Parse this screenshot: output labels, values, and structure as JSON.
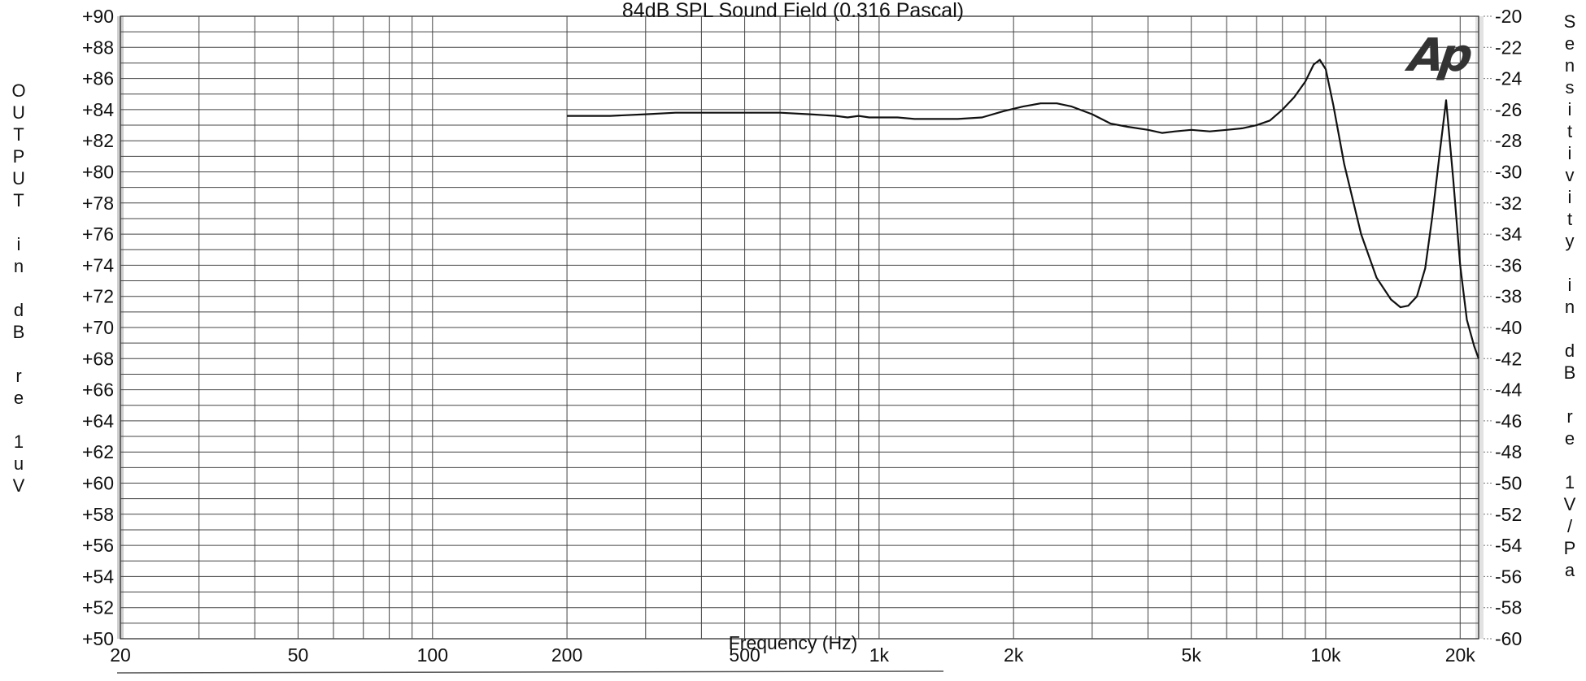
{
  "chart_data": {
    "type": "line",
    "title": "84dB SPL Sound Field (0.316 Pascal)",
    "xlabel": "Frequency (Hz)",
    "ylabel_left": "OUTPUT in dB re 1uV",
    "ylabel_right": "Sensitivity in dB re 1V/Pa",
    "x_scale": "log",
    "xlim": [
      20,
      22000
    ],
    "ylim_left": [
      50,
      90
    ],
    "ylim_right": [
      -60,
      -20
    ],
    "grid": true,
    "x_tick_labels": [
      {
        "value": 20,
        "label": "20"
      },
      {
        "value": 50,
        "label": "50"
      },
      {
        "value": 100,
        "label": "100"
      },
      {
        "value": 200,
        "label": "200"
      },
      {
        "value": 500,
        "label": "500"
      },
      {
        "value": 1000,
        "label": "1k"
      },
      {
        "value": 2000,
        "label": "2k"
      },
      {
        "value": 5000,
        "label": "5k"
      },
      {
        "value": 10000,
        "label": "10k"
      },
      {
        "value": 20000,
        "label": "20k"
      }
    ],
    "y_left_ticks": [
      {
        "value": 90,
        "label": "+90"
      },
      {
        "value": 88,
        "label": "+88"
      },
      {
        "value": 86,
        "label": "+86"
      },
      {
        "value": 84,
        "label": "+84"
      },
      {
        "value": 82,
        "label": "+82"
      },
      {
        "value": 80,
        "label": "+80"
      },
      {
        "value": 78,
        "label": "+78"
      },
      {
        "value": 76,
        "label": "+76"
      },
      {
        "value": 74,
        "label": "+74"
      },
      {
        "value": 72,
        "label": "+72"
      },
      {
        "value": 70,
        "label": "+70"
      },
      {
        "value": 68,
        "label": "+68"
      },
      {
        "value": 66,
        "label": "+66"
      },
      {
        "value": 64,
        "label": "+64"
      },
      {
        "value": 62,
        "label": "+62"
      },
      {
        "value": 60,
        "label": "+60"
      },
      {
        "value": 58,
        "label": "+58"
      },
      {
        "value": 56,
        "label": "+56"
      },
      {
        "value": 54,
        "label": "+54"
      },
      {
        "value": 52,
        "label": "+52"
      },
      {
        "value": 50,
        "label": "+50"
      }
    ],
    "y_right_ticks": [
      {
        "value": -20,
        "label": "-20"
      },
      {
        "value": -22,
        "label": "-22"
      },
      {
        "value": -24,
        "label": "-24"
      },
      {
        "value": -26,
        "label": "-26"
      },
      {
        "value": -28,
        "label": "-28"
      },
      {
        "value": -30,
        "label": "-30"
      },
      {
        "value": -32,
        "label": "-32"
      },
      {
        "value": -34,
        "label": "-34"
      },
      {
        "value": -36,
        "label": "-36"
      },
      {
        "value": -38,
        "label": "-38"
      },
      {
        "value": -40,
        "label": "-40"
      },
      {
        "value": -42,
        "label": "-42"
      },
      {
        "value": -44,
        "label": "-44"
      },
      {
        "value": -46,
        "label": "-46"
      },
      {
        "value": -48,
        "label": "-48"
      },
      {
        "value": -50,
        "label": "-50"
      },
      {
        "value": -52,
        "label": "-52"
      },
      {
        "value": -54,
        "label": "-54"
      },
      {
        "value": -56,
        "label": "-56"
      },
      {
        "value": -58,
        "label": "-58"
      },
      {
        "value": -60,
        "label": "-60"
      }
    ],
    "series": [
      {
        "color": "#111111",
        "points": [
          [
            200,
            83.6
          ],
          [
            250,
            83.6
          ],
          [
            300,
            83.7
          ],
          [
            350,
            83.8
          ],
          [
            400,
            83.8
          ],
          [
            450,
            83.8
          ],
          [
            500,
            83.8
          ],
          [
            600,
            83.8
          ],
          [
            700,
            83.7
          ],
          [
            800,
            83.6
          ],
          [
            850,
            83.5
          ],
          [
            900,
            83.6
          ],
          [
            950,
            83.5
          ],
          [
            1000,
            83.5
          ],
          [
            1100,
            83.5
          ],
          [
            1200,
            83.4
          ],
          [
            1300,
            83.4
          ],
          [
            1500,
            83.4
          ],
          [
            1700,
            83.5
          ],
          [
            1900,
            83.9
          ],
          [
            2100,
            84.2
          ],
          [
            2300,
            84.4
          ],
          [
            2500,
            84.4
          ],
          [
            2700,
            84.2
          ],
          [
            3000,
            83.7
          ],
          [
            3300,
            83.1
          ],
          [
            3600,
            82.9
          ],
          [
            4000,
            82.7
          ],
          [
            4300,
            82.5
          ],
          [
            4600,
            82.6
          ],
          [
            5000,
            82.7
          ],
          [
            5500,
            82.6
          ],
          [
            6000,
            82.7
          ],
          [
            6500,
            82.8
          ],
          [
            7000,
            83.0
          ],
          [
            7500,
            83.3
          ],
          [
            8000,
            84.0
          ],
          [
            8500,
            84.8
          ],
          [
            9000,
            85.8
          ],
          [
            9400,
            86.9
          ],
          [
            9700,
            87.2
          ],
          [
            10000,
            86.6
          ],
          [
            10400,
            84.3
          ],
          [
            11000,
            80.5
          ],
          [
            12000,
            76.0
          ],
          [
            13000,
            73.2
          ],
          [
            14000,
            71.8
          ],
          [
            14700,
            71.3
          ],
          [
            15300,
            71.4
          ],
          [
            16000,
            72.0
          ],
          [
            16700,
            73.8
          ],
          [
            17300,
            77.0
          ],
          [
            18000,
            81.2
          ],
          [
            18600,
            84.6
          ],
          [
            19300,
            79.5
          ],
          [
            20000,
            74.0
          ],
          [
            20700,
            70.5
          ],
          [
            21500,
            68.8
          ],
          [
            22000,
            68.0
          ]
        ]
      }
    ]
  },
  "logo_text": "Ap"
}
